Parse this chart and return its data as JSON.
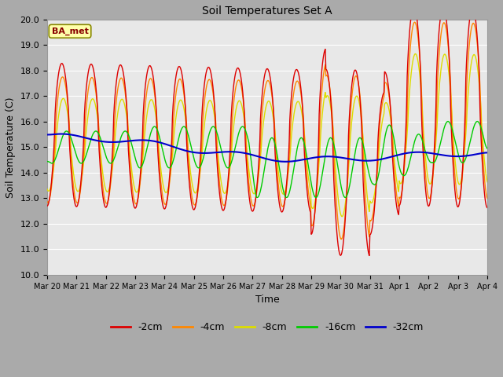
{
  "title": "Soil Temperatures Set A",
  "xlabel": "Time",
  "ylabel": "Soil Temperature (C)",
  "ylim": [
    10.0,
    20.0
  ],
  "yticks": [
    10.0,
    11.0,
    12.0,
    13.0,
    14.0,
    15.0,
    16.0,
    17.0,
    18.0,
    19.0,
    20.0
  ],
  "plot_bg_color": "#e8e8e8",
  "fig_bg_color": "#c8c8c8",
  "legend_label": "BA_met",
  "series_colors": {
    "-2cm": "#dd0000",
    "-4cm": "#ff8800",
    "-8cm": "#dddd00",
    "-16cm": "#00cc00",
    "-32cm": "#0000cc"
  },
  "xtick_labels": [
    "Mar 20",
    "Mar 21",
    "Mar 22",
    "Mar 23",
    "Mar 24",
    "Mar 25",
    "Mar 26",
    "Mar 27",
    "Mar 28",
    "Mar 29",
    "Mar 30",
    "Mar 31",
    "Apr 1",
    "Apr 2",
    "Apr 3",
    "Apr 4"
  ],
  "annotation_box_color": "#ffffaa",
  "annotation_text_color": "#880000",
  "annotation_border_color": "#888800",
  "grid_color": "#ffffff",
  "n_days": 15,
  "pts_per_day": 48
}
